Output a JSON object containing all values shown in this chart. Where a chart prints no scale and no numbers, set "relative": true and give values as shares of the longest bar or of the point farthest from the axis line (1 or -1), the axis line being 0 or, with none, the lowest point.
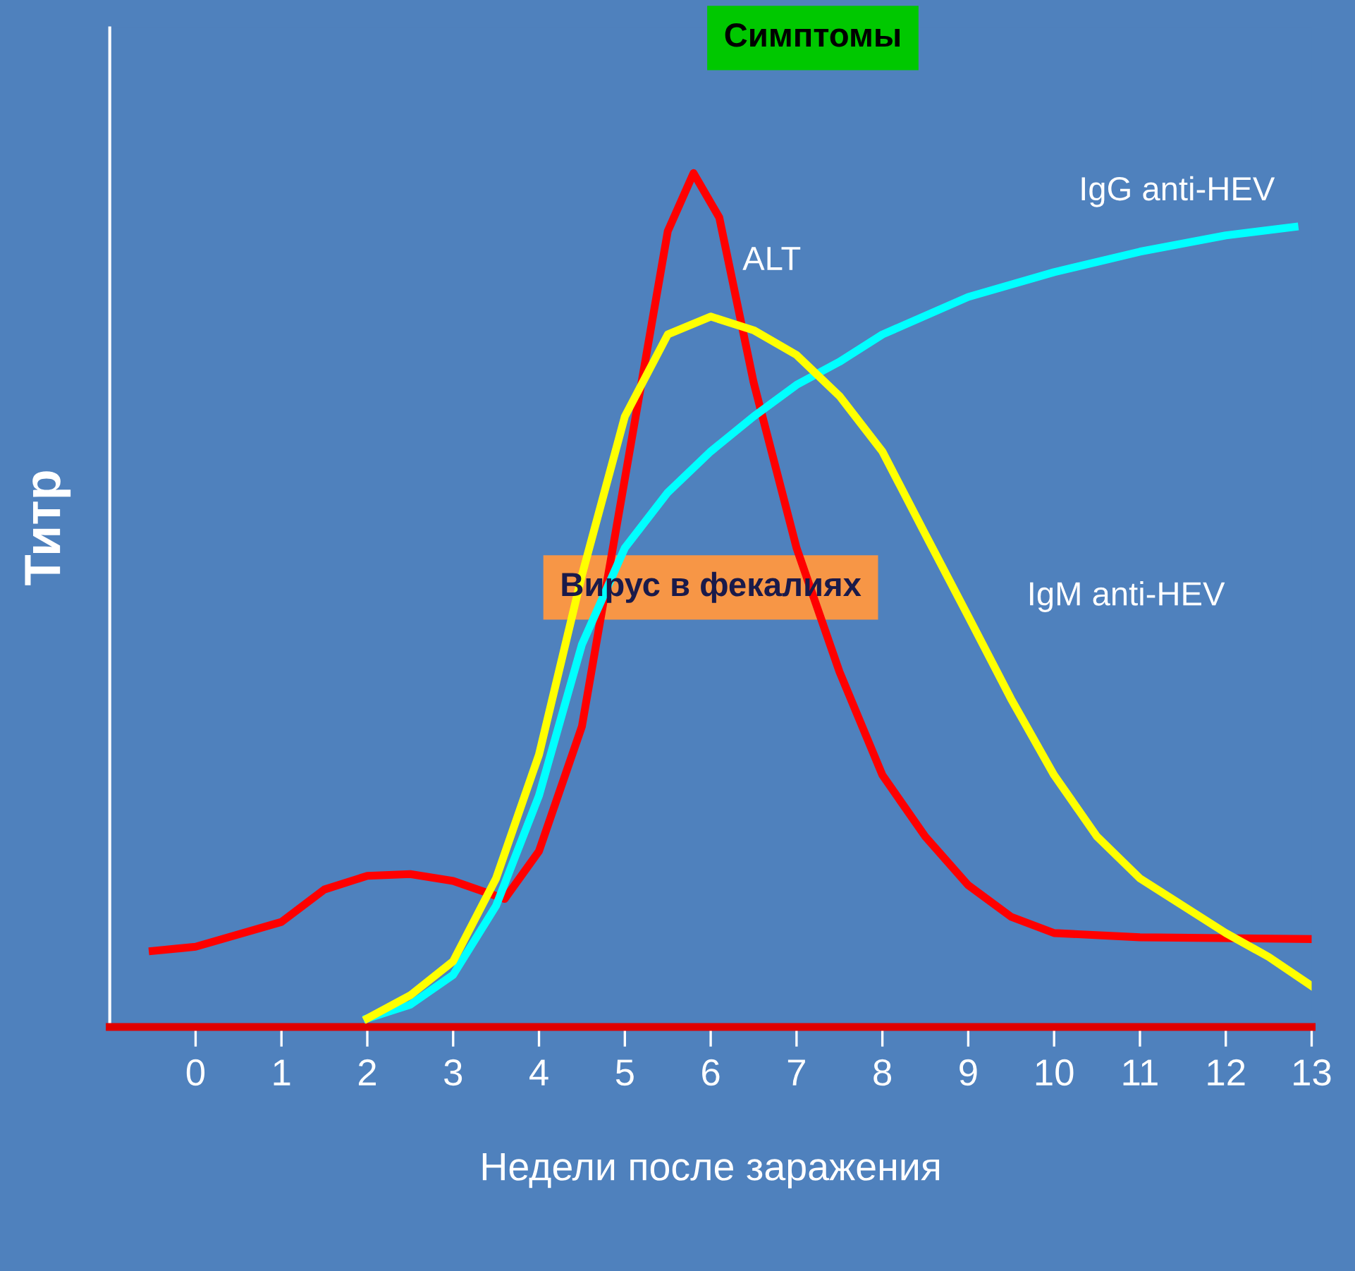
{
  "chart_data": {
    "type": "line",
    "relative": true,
    "xlabel": "Недели после заражения",
    "ylabel": "Титр",
    "xlim": [
      -1,
      13
    ],
    "xticks": [
      0,
      1,
      2,
      3,
      4,
      5,
      6,
      7,
      8,
      9,
      10,
      11,
      12,
      13
    ],
    "annotations": [
      "Симптомы",
      "Вирус в фекалиях"
    ],
    "grid": false,
    "legend": false,
    "marker": "none",
    "line_style": "solid",
    "series": [
      {
        "name": "ALT",
        "color": "#ff0000",
        "x": [
          -0.5,
          0,
          1,
          1.5,
          2,
          2.5,
          3,
          3.6,
          4,
          4.5,
          5,
          5.5,
          5.8,
          6.1,
          6.5,
          7,
          7.5,
          8,
          8.5,
          9,
          9.5,
          10,
          11,
          13
        ],
        "values": [
          0.089,
          0.094,
          0.123,
          0.161,
          0.177,
          0.179,
          0.171,
          0.15,
          0.206,
          0.352,
          0.642,
          0.932,
          1.0,
          0.948,
          0.755,
          0.561,
          0.416,
          0.295,
          0.223,
          0.166,
          0.129,
          0.11,
          0.105,
          0.103
        ]
      },
      {
        "name": "IgG anti-HEV",
        "color": "#00ffff",
        "x": [
          2,
          2.5,
          3,
          3.5,
          4,
          4.5,
          5,
          5.5,
          6,
          6.5,
          7,
          7.5,
          8,
          9,
          10,
          11,
          12,
          12.8
        ],
        "values": [
          0.01,
          0.026,
          0.061,
          0.142,
          0.271,
          0.448,
          0.561,
          0.626,
          0.674,
          0.715,
          0.752,
          0.779,
          0.811,
          0.855,
          0.884,
          0.908,
          0.927,
          0.937
        ]
      },
      {
        "name": "IgM anti-HEV",
        "color": "#ffff00",
        "x": [
          2,
          2.5,
          3,
          3.5,
          4,
          4.5,
          5,
          5.5,
          6,
          6.5,
          7,
          7.5,
          8,
          8.5,
          9,
          9.5,
          10,
          10.5,
          11,
          11.5,
          12,
          12.5,
          13
        ],
        "values": [
          0.01,
          0.037,
          0.077,
          0.174,
          0.319,
          0.529,
          0.715,
          0.811,
          0.832,
          0.816,
          0.787,
          0.739,
          0.674,
          0.577,
          0.481,
          0.384,
          0.295,
          0.223,
          0.174,
          0.142,
          0.11,
          0.082,
          0.048
        ]
      }
    ]
  }
}
